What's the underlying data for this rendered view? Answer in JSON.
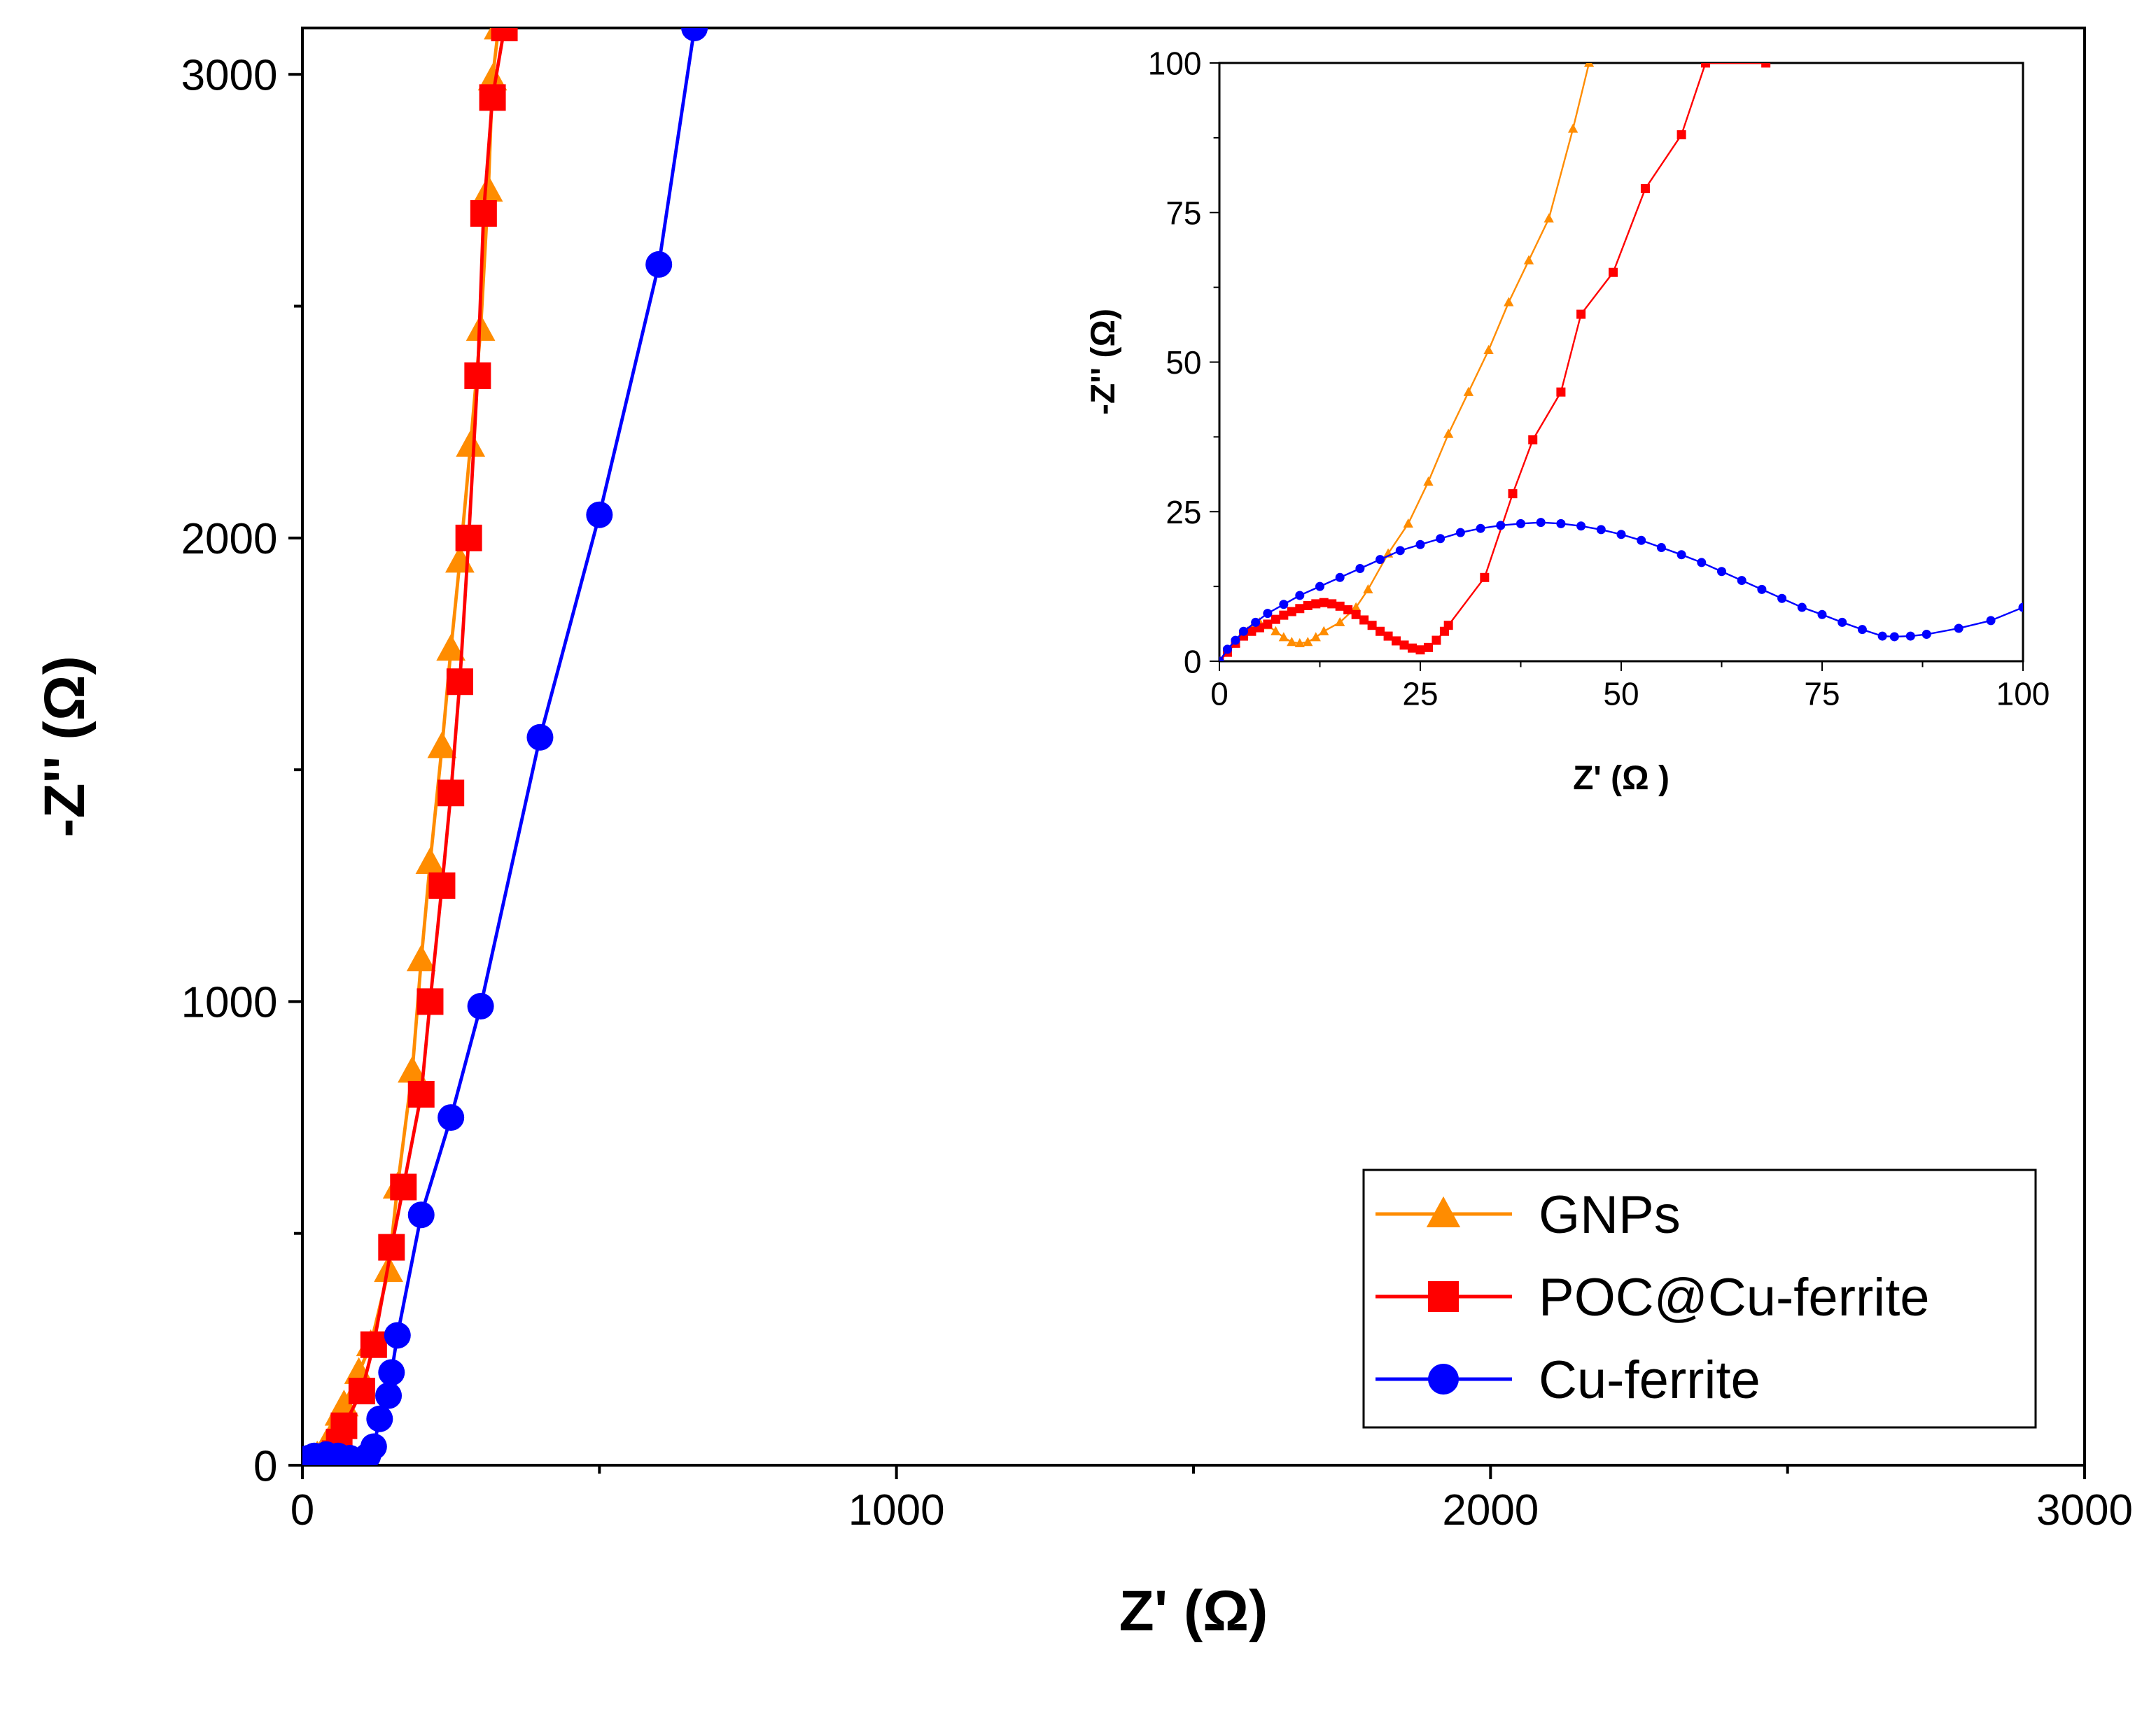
{
  "chart_data": [
    {
      "id": "main",
      "type": "scatter",
      "title": "",
      "xlabel": "Z' (Ω)",
      "ylabel": "-Z'' (Ω)",
      "xlim": [
        0,
        3000
      ],
      "ylim": [
        0,
        3100
      ],
      "xticks": [
        0,
        1000,
        2000,
        3000
      ],
      "yticks": [
        0,
        1000,
        2000,
        3000
      ],
      "legend_position": "bottom-right",
      "series": [
        {
          "name": "GNPs",
          "color": "#ff8c00",
          "marker": "triangle",
          "x": [
            3,
            10,
            25,
            40,
            52,
            62,
            70,
            95,
            115,
            145,
            160,
            185,
            200,
            215,
            235,
            250,
            265,
            283,
            300,
            313,
            320,
            330
          ],
          "y": [
            0,
            5,
            20,
            45,
            70,
            110,
            130,
            200,
            260,
            420,
            600,
            850,
            1090,
            1300,
            1550,
            1760,
            1950,
            2200,
            2450,
            2750,
            2990,
            3100
          ]
        },
        {
          "name": "POC@Cu-ferrite",
          "color": "#ff0000",
          "marker": "square",
          "x": [
            5,
            15,
            30,
            45,
            55,
            62,
            70,
            100,
            120,
            150,
            170,
            200,
            215,
            235,
            250,
            265,
            280,
            295,
            305,
            320,
            340
          ],
          "y": [
            0,
            5,
            10,
            15,
            25,
            50,
            85,
            160,
            260,
            470,
            600,
            800,
            1000,
            1250,
            1450,
            1690,
            2000,
            2350,
            2700,
            2950,
            3100
          ]
        },
        {
          "name": "Cu-ferrite",
          "color": "#0000ff",
          "marker": "circle",
          "x": [
            2,
            10,
            20,
            40,
            60,
            80,
            100,
            110,
            120,
            130,
            145,
            150,
            160,
            200,
            250,
            300,
            400,
            500,
            600,
            660
          ],
          "y": [
            5,
            15,
            20,
            23,
            20,
            15,
            5,
            20,
            40,
            100,
            150,
            200,
            280,
            540,
            750,
            990,
            1570,
            2050,
            2590,
            3100
          ]
        }
      ]
    },
    {
      "id": "inset",
      "type": "scatter",
      "title": "",
      "xlabel": "Z' (Ω )",
      "ylabel": "-Z'' (Ω)",
      "xlim": [
        0,
        100
      ],
      "ylim": [
        0,
        100
      ],
      "xticks": [
        0,
        25,
        50,
        75,
        100
      ],
      "yticks": [
        0,
        25,
        50,
        75,
        100
      ],
      "series": [
        {
          "name": "GNPs",
          "color": "#ff8c00",
          "marker": "triangle",
          "x": [
            0,
            1,
            2,
            3,
            4,
            5,
            6,
            7,
            8,
            9,
            10,
            11,
            12,
            13,
            15,
            17,
            18.5,
            21,
            23.5,
            26,
            28.5,
            31,
            33.5,
            36,
            38.5,
            41,
            44,
            46
          ],
          "y": [
            0,
            1.5,
            3,
            4.5,
            5.5,
            6.5,
            6,
            5,
            4,
            3.2,
            3,
            3.2,
            4,
            5,
            6.5,
            9,
            12,
            18,
            23,
            30,
            38,
            45,
            52,
            60,
            67,
            74,
            89,
            100
          ]
        },
        {
          "name": "POC@Cu-ferrite",
          "color": "#ff0000",
          "marker": "square",
          "x": [
            0,
            1,
            2,
            3,
            4,
            5,
            6,
            7,
            8,
            9,
            10,
            11,
            12,
            13,
            14,
            15,
            16,
            17,
            18,
            19,
            20,
            21,
            22,
            23,
            24,
            25,
            26,
            27,
            28,
            28.5,
            33,
            36.5,
            39,
            42.5,
            45,
            49,
            53,
            57.5,
            60.5,
            68
          ],
          "y": [
            0,
            1.5,
            3,
            4.2,
            5,
            5.6,
            6.2,
            7,
            7.7,
            8.3,
            8.8,
            9.3,
            9.6,
            9.8,
            9.6,
            9.2,
            8.6,
            7.8,
            6.9,
            6,
            5,
            4.2,
            3.4,
            2.7,
            2.2,
            1.9,
            2.3,
            3.5,
            5,
            6,
            14,
            28,
            37,
            45,
            58,
            65,
            79,
            88,
            100,
            100
          ]
        },
        {
          "name": "Cu-ferrite",
          "color": "#0000ff",
          "marker": "circle",
          "x": [
            0,
            1,
            2,
            3,
            4.5,
            6,
            8,
            10,
            12.5,
            15,
            17.5,
            20,
            22.5,
            25,
            27.5,
            30,
            32.5,
            35,
            37.5,
            40,
            42.5,
            45,
            47.5,
            50,
            52.5,
            55,
            57.5,
            60,
            62.5,
            65,
            67.5,
            70,
            72.5,
            75,
            77.5,
            80,
            82.5,
            84,
            86,
            88,
            92,
            96,
            100
          ],
          "y": [
            0,
            2,
            3.5,
            5,
            6.5,
            8,
            9.5,
            11,
            12.5,
            14,
            15.5,
            17,
            18.5,
            19.5,
            20.5,
            21.5,
            22.2,
            22.7,
            23,
            23.2,
            23,
            22.6,
            22,
            21.2,
            20.2,
            19,
            17.8,
            16.5,
            15,
            13.5,
            12,
            10.5,
            9,
            7.8,
            6.5,
            5.3,
            4.2,
            4.1,
            4.2,
            4.5,
            5.5,
            6.8,
            9
          ]
        }
      ]
    }
  ]
}
